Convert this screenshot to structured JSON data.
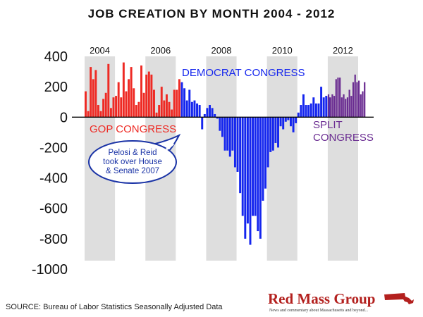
{
  "chart_data": {
    "type": "bar",
    "title": "JOB CREATION BY MONTH 2004 - 2012",
    "source": "SOURCE: Bureau of Labor Statistics Seasonally Adjusted Data",
    "ylim": [
      -1000,
      400
    ],
    "yticks": [
      "400",
      "200",
      "0",
      "-200",
      "-400",
      "-600",
      "-800",
      "-1000"
    ],
    "ytick_values": [
      400,
      200,
      0,
      -200,
      -400,
      -600,
      -800,
      -1000
    ],
    "xlim": [
      2004,
      2013
    ],
    "year_labels": [
      {
        "label": "2004",
        "x": 2004.5
      },
      {
        "label": "2006",
        "x": 2006.5
      },
      {
        "label": "2008",
        "x": 2008.5
      },
      {
        "label": "2010",
        "x": 2010.5
      },
      {
        "label": "2012",
        "x": 2012.5
      }
    ],
    "shaded_years": [
      2004,
      2006,
      2008,
      2010,
      2012
    ],
    "grid": false,
    "series": [
      {
        "name": "GOP CONGRESS",
        "color": "#ee2a24",
        "x_start": 2004.0,
        "values": [
          170,
          40,
          330,
          250,
          310,
          80,
          40,
          120,
          160,
          350,
          60,
          130,
          140,
          230,
          130,
          360,
          170,
          250,
          330,
          190,
          80,
          100,
          340,
          160,
          280,
          300,
          280,
          180,
          30,
          80,
          200,
          110,
          150,
          100,
          50,
          180,
          180,
          250
        ]
      },
      {
        "name": "DEMOCRAT CONGRESS",
        "color": "#1526ee",
        "x_start": 2007.1667,
        "values": [
          230,
          190,
          110,
          180,
          100,
          110,
          90,
          80,
          -80,
          20,
          60,
          80,
          60,
          20,
          -10,
          -90,
          -130,
          -220,
          -220,
          -260,
          -220,
          -330,
          -360,
          -500,
          -650,
          -800,
          -700,
          -840,
          -650,
          -650,
          -750,
          -800,
          -550,
          -470,
          -330,
          -230,
          -220,
          -170,
          -200,
          -60,
          -80,
          -30,
          -20,
          -60,
          -100,
          -40,
          30,
          80,
          150,
          80,
          80,
          90,
          130,
          90,
          90,
          200,
          130,
          140,
          130
        ]
      },
      {
        "name": "SPLIT CONGRESS",
        "color": "#6a2c91",
        "x_start": 2012.0,
        "x_step": 0.0625,
        "values": [
          150,
          130,
          150,
          140,
          250,
          260,
          260,
          130,
          150,
          120,
          130,
          180,
          140,
          230,
          280,
          230,
          240,
          150,
          170,
          230
        ]
      }
    ],
    "annotations": [
      {
        "text": "DEMOCRAT CONGRESS",
        "color": "#1526ee"
      },
      {
        "text": "GOP CONGRESS",
        "color": "#ee2a24"
      },
      {
        "text": "SPLIT",
        "color": "#6a2c91"
      },
      {
        "text": "CONGRESS",
        "color": "#6a2c91"
      }
    ],
    "callout": {
      "lines": [
        "Pelosi & Reid",
        "took over House",
        "& Senate 2007"
      ],
      "text_color": "#1a33a6",
      "border_color": "#1a33a6"
    }
  },
  "logo": {
    "name": "Red Mass Group",
    "tagline": "News and commentary about Massachusetts and beyond...",
    "color": "#b3201e"
  }
}
